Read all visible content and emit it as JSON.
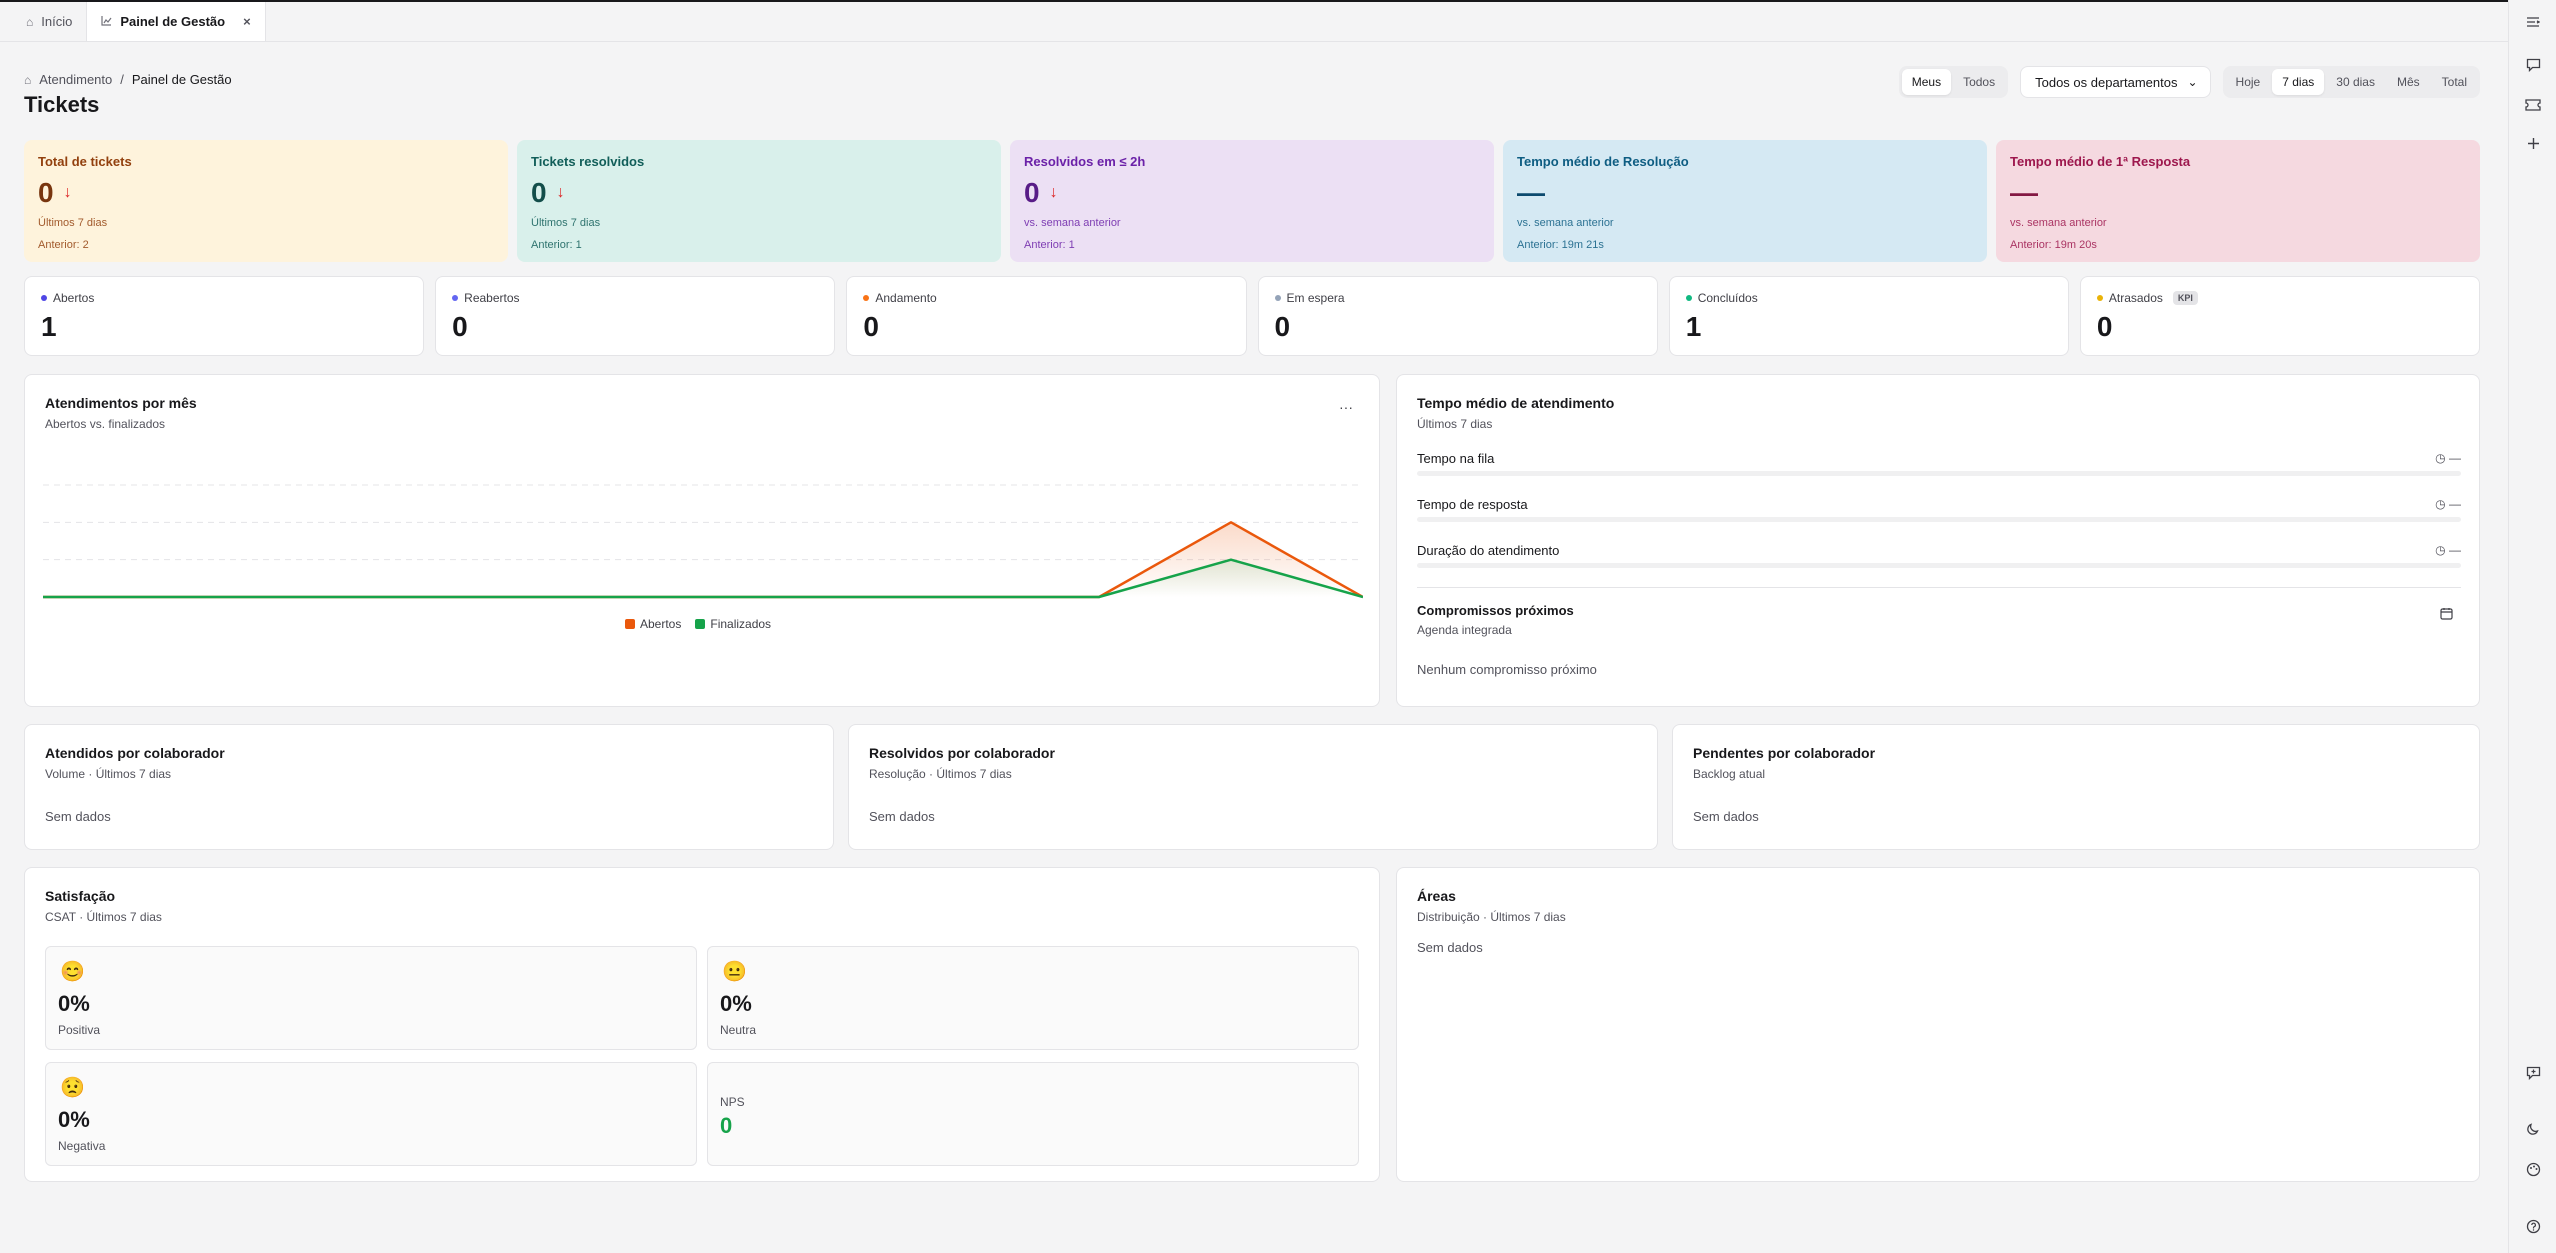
{
  "tabs": [
    {
      "label": "Início",
      "icon": "home-icon"
    },
    {
      "label": "Painel de Gestão",
      "icon": "chart-icon",
      "close": "×"
    }
  ],
  "breadcrumb": {
    "root": "Atendimento",
    "separator": "/",
    "current": "Painel de Gestão"
  },
  "page_title": "Tickets",
  "filters": {
    "scope": [
      "Meus",
      "Todos"
    ],
    "scope_selected": "Meus",
    "department": "Todos os departamentos",
    "department_caret": "⌄",
    "periods": [
      "Hoje",
      "7 dias",
      "30 dias",
      "Mês",
      "Total"
    ],
    "period_selected": "7 dias"
  },
  "summary": [
    {
      "label": "Total de tickets",
      "value": "0",
      "arrow": "↓",
      "sub": "Últimos 7 dias",
      "prev": "Anterior: 2",
      "bg": "#fef3dc",
      "fg": "#92400e",
      "valc": "#78350f"
    },
    {
      "label": "Tickets resolvidos",
      "value": "0",
      "arrow": "↓",
      "sub": "Últimos 7 dias",
      "prev": "Anterior: 1",
      "bg": "#d9f0eb",
      "fg": "#115e59",
      "valc": "#134e4a"
    },
    {
      "label": "Resolvidos em ≤ 2h",
      "value": "0",
      "arrow": "↓",
      "sub": "vs. semana anterior",
      "prev": "Anterior: 1",
      "bg": "#ece0f4",
      "fg": "#6b21a8",
      "valc": "#581c87"
    },
    {
      "label": "Tempo médio de Resolução",
      "value": "—",
      "arrow": "",
      "sub": "vs. semana anterior",
      "prev": "Anterior: 19m 21s",
      "bg": "#d5e9f3",
      "fg": "#0e5d82",
      "valc": "#0c4a6e"
    },
    {
      "label": "Tempo médio de 1ª Resposta",
      "value": "—",
      "arrow": "",
      "sub": "vs. semana anterior",
      "prev": "Anterior: 19m 20s",
      "bg": "#f5d9e0",
      "fg": "#9d174d",
      "valc": "#831843"
    }
  ],
  "status": [
    {
      "label": "Abertos",
      "value": "1",
      "dot": "#4f46e5"
    },
    {
      "label": "Reabertos",
      "value": "0",
      "dot": "#6366f1"
    },
    {
      "label": "Andamento",
      "value": "0",
      "dot": "#f97316"
    },
    {
      "label": "Em espera",
      "value": "0",
      "dot": "#94a3b8"
    },
    {
      "label": "Concluídos",
      "value": "1",
      "dot": "#10b981"
    },
    {
      "label": "Atrasados",
      "value": "0",
      "dot": "#eab308",
      "badge": "KPI"
    }
  ],
  "monthly": {
    "title": "Atendimentos por mês",
    "subtitle": "Abertos vs. finalizados",
    "more": "···",
    "legend": [
      {
        "name": "Abertos",
        "color": "#ea580c"
      },
      {
        "name": "Finalizados",
        "color": "#16a34a"
      }
    ]
  },
  "chart_data": {
    "type": "line",
    "x": [
      0,
      1,
      2,
      3,
      4,
      5,
      6,
      7,
      8,
      9,
      10
    ],
    "series": [
      {
        "name": "Abertos",
        "values": [
          0,
          0,
          0,
          0,
          0,
          0,
          0,
          0,
          0,
          2,
          0
        ],
        "color": "#ea580c"
      },
      {
        "name": "Finalizados",
        "values": [
          0,
          0,
          0,
          0,
          0,
          0,
          0,
          0,
          0,
          1,
          0
        ],
        "color": "#16a34a"
      }
    ],
    "ylim": [
      0,
      3
    ],
    "grid": true
  },
  "avg_time": {
    "title": "Tempo médio de atendimento",
    "subtitle": "Últimos 7 dias",
    "rows": [
      {
        "label": "Tempo na fila",
        "value": "—"
      },
      {
        "label": "Tempo de resposta",
        "value": "—"
      },
      {
        "label": "Duração do atendimento",
        "value": "—"
      }
    ],
    "clock": "◷",
    "appointments_title": "Compromissos próximos",
    "appointments_subtitle": "Agenda integrada",
    "appointments_empty": "Nenhum compromisso próximo"
  },
  "collab": [
    {
      "title": "Atendidos por colaborador",
      "subtitle": "Volume · Últimos 7 dias",
      "empty": "Sem dados"
    },
    {
      "title": "Resolvidos por colaborador",
      "subtitle": "Resolução · Últimos 7 dias",
      "empty": "Sem dados"
    },
    {
      "title": "Pendentes por colaborador",
      "subtitle": "Backlog atual",
      "empty": "Sem dados"
    }
  ],
  "satisfaction": {
    "title": "Satisfação",
    "subtitle": "CSAT · Últimos 7 dias",
    "positive": {
      "emoji": "😊",
      "pct": "0%",
      "label": "Positiva"
    },
    "neutral": {
      "emoji": "😐",
      "pct": "0%",
      "label": "Neutra"
    },
    "negative": {
      "emoji": "😟",
      "pct": "0%",
      "label": "Negativa"
    },
    "nps": {
      "label": "NPS",
      "value": "0"
    }
  },
  "areas": {
    "title": "Áreas",
    "subtitle": "Distribuição · Últimos 7 dias",
    "empty": "Sem dados"
  },
  "rail_icons": [
    "list-icon",
    "chat-icon",
    "ticket-icon",
    "plus-icon",
    "message-plus-icon",
    "moon-icon",
    "palette-icon",
    "help-icon"
  ]
}
